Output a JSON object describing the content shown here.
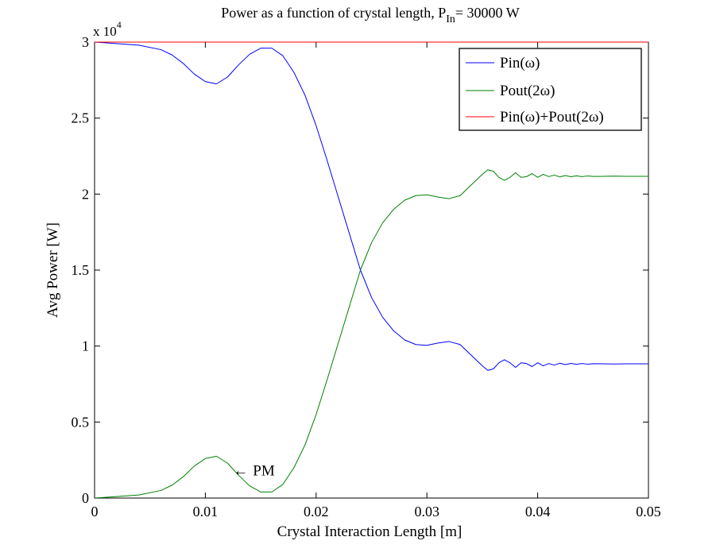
{
  "chart_data": {
    "type": "line",
    "title_prefix": "Power as a function of crystal length, P",
    "title_subscript": "In",
    "title_suffix": "= 30000 W",
    "xlabel": "Crystal Interaction Length [m]",
    "ylabel": "Avg Power [W]",
    "y_exponent_label": "x 10",
    "y_exponent_power": "4",
    "xlim": [
      0,
      0.05
    ],
    "ylim": [
      0,
      30000
    ],
    "x_ticks": [
      0,
      0.01,
      0.02,
      0.03,
      0.04,
      0.05
    ],
    "x_tick_labels": [
      "0",
      "0.01",
      "0.02",
      "0.03",
      "0.04",
      "0.05"
    ],
    "y_ticks": [
      0,
      5000,
      10000,
      15000,
      20000,
      25000,
      30000
    ],
    "y_tick_labels": [
      "0",
      "0.5",
      "1",
      "1.5",
      "2",
      "2.5",
      "3"
    ],
    "legend_position": "top-right",
    "annotation": {
      "text": "PM",
      "arrow": "←",
      "x": 0.0125,
      "y": 1800
    },
    "series": [
      {
        "name": "Pin(ω)",
        "color": "#0000ff",
        "x": [
          0,
          0.002,
          0.004,
          0.006,
          0.007,
          0.008,
          0.009,
          0.01,
          0.011,
          0.012,
          0.013,
          0.014,
          0.015,
          0.016,
          0.017,
          0.018,
          0.019,
          0.02,
          0.021,
          0.022,
          0.023,
          0.024,
          0.025,
          0.026,
          0.027,
          0.028,
          0.029,
          0.03,
          0.031,
          0.032,
          0.033,
          0.034,
          0.035,
          0.0355,
          0.036,
          0.0365,
          0.037,
          0.0375,
          0.038,
          0.0385,
          0.039,
          0.0395,
          0.04,
          0.0405,
          0.041,
          0.0415,
          0.042,
          0.0425,
          0.043,
          0.0435,
          0.044,
          0.0445,
          0.045,
          0.046,
          0.047,
          0.048,
          0.049,
          0.05
        ],
        "y": [
          30000,
          29900,
          29800,
          29500,
          29150,
          28600,
          27900,
          27400,
          27250,
          27700,
          28500,
          29200,
          29600,
          29600,
          29100,
          28000,
          26500,
          24500,
          22200,
          19800,
          17400,
          15000,
          13200,
          11900,
          11000,
          10400,
          10100,
          10050,
          10200,
          10300,
          10100,
          9400,
          8700,
          8400,
          8500,
          8900,
          9100,
          8900,
          8600,
          8900,
          8850,
          8650,
          8900,
          8700,
          8850,
          8750,
          8870,
          8780,
          8860,
          8800,
          8850,
          8810,
          8840,
          8830,
          8820,
          8830,
          8830,
          8830
        ]
      },
      {
        "name": "Pout(2ω)",
        "color": "#008000",
        "x": [
          0,
          0.002,
          0.004,
          0.006,
          0.007,
          0.008,
          0.009,
          0.01,
          0.011,
          0.012,
          0.013,
          0.014,
          0.015,
          0.016,
          0.017,
          0.018,
          0.019,
          0.02,
          0.021,
          0.022,
          0.023,
          0.024,
          0.025,
          0.026,
          0.027,
          0.028,
          0.029,
          0.03,
          0.031,
          0.032,
          0.033,
          0.034,
          0.035,
          0.0355,
          0.036,
          0.0365,
          0.037,
          0.0375,
          0.038,
          0.0385,
          0.039,
          0.0395,
          0.04,
          0.0405,
          0.041,
          0.0415,
          0.042,
          0.0425,
          0.043,
          0.0435,
          0.044,
          0.0445,
          0.045,
          0.046,
          0.047,
          0.048,
          0.049,
          0.05
        ],
        "y": [
          0,
          100,
          200,
          500,
          850,
          1400,
          2100,
          2600,
          2750,
          2300,
          1500,
          800,
          400,
          400,
          900,
          2000,
          3500,
          5500,
          7800,
          10200,
          12600,
          15000,
          16800,
          18100,
          19000,
          19600,
          19900,
          19950,
          19800,
          19700,
          19900,
          20600,
          21300,
          21600,
          21500,
          21100,
          20900,
          21100,
          21400,
          21100,
          21150,
          21350,
          21100,
          21300,
          21150,
          21250,
          21130,
          21220,
          21140,
          21200,
          21150,
          21190,
          21160,
          21170,
          21180,
          21170,
          21170,
          21170
        ]
      },
      {
        "name": "Pin(ω)+Pout(2ω)",
        "color": "#ff0000",
        "x": [
          0,
          0.01,
          0.02,
          0.03,
          0.04,
          0.05
        ],
        "y": [
          30000,
          30000,
          30000,
          30000,
          30000,
          30000
        ]
      }
    ]
  }
}
